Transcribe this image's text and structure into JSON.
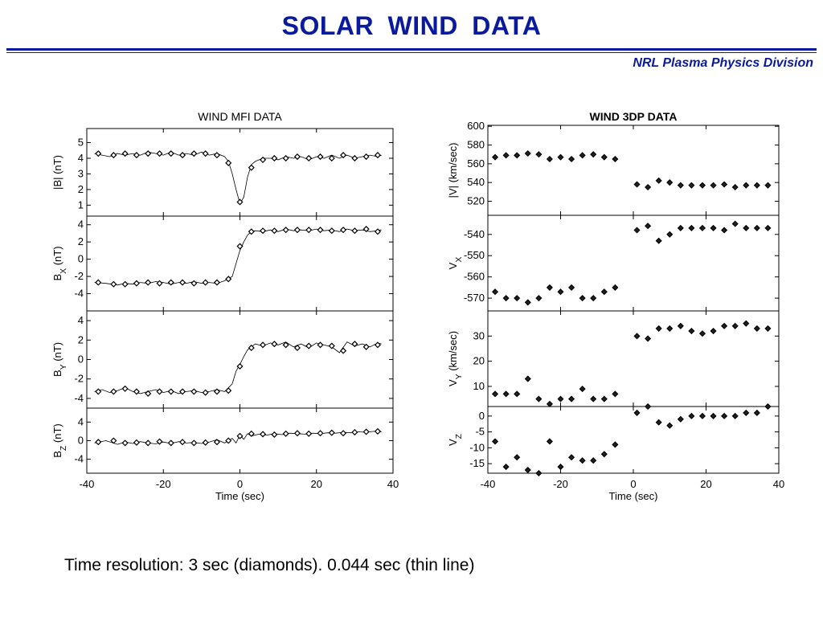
{
  "slide": {
    "title": "SOLAR  WIND  DATA",
    "subtitle": "NRL Plasma Physics Division",
    "caption": "Time resolution: 3 sec (diamonds).  0.044 sec (thin line)",
    "title_color": "#0a1a9c"
  },
  "chart_data": [
    {
      "type": "line",
      "title": "WIND MFI DATA",
      "xlabel": "Time (sec)",
      "xlim": [
        -40,
        40
      ],
      "xticks": [
        -40,
        -20,
        0,
        20,
        40
      ],
      "panels": [
        {
          "ylabel": "|B| (nT)",
          "ylim": [
            0.3,
            5.9
          ],
          "yticks": [
            1,
            2,
            3,
            4,
            5
          ],
          "diamonds": {
            "x": [
              -37,
              -33,
              -30,
              -27,
              -24,
              -21,
              -18,
              -15,
              -12,
              -9,
              -6,
              -3,
              0,
              3,
              6,
              9,
              12,
              15,
              18,
              21,
              24,
              27,
              30,
              33,
              36
            ],
            "y": [
              4.3,
              4.2,
              4.3,
              4.2,
              4.3,
              4.3,
              4.3,
              4.2,
              4.3,
              4.3,
              4.2,
              3.7,
              1.2,
              3.4,
              3.9,
              4.0,
              4.0,
              4.1,
              4.0,
              4.1,
              4.0,
              4.2,
              4.0,
              4.1,
              4.2
            ]
          },
          "line": {
            "x": [
              -38,
              -36,
              -34,
              -32,
              -30,
              -28,
              -26,
              -24,
              -22,
              -20,
              -18,
              -16,
              -14,
              -12,
              -10,
              -8,
              -6,
              -4,
              -3,
              -2,
              -1,
              0,
              1,
              2,
              3,
              4,
              6,
              8,
              10,
              12,
              14,
              16,
              18,
              20,
              22,
              24,
              26,
              28,
              30,
              32,
              34,
              36,
              37
            ],
            "y": [
              4.3,
              4.2,
              4.1,
              4.3,
              4.2,
              4.3,
              4.2,
              4.4,
              4.3,
              4.2,
              4.4,
              4.2,
              4.3,
              4.2,
              4.4,
              4.2,
              4.3,
              4.1,
              3.8,
              3.0,
              2.0,
              1.1,
              1.5,
              2.8,
              3.6,
              3.8,
              4.0,
              4.0,
              3.9,
              4.1,
              4.0,
              4.1,
              3.9,
              4.1,
              4.0,
              4.2,
              4.0,
              4.2,
              4.0,
              4.1,
              4.2,
              4.1,
              4.2
            ]
          }
        },
        {
          "ylabel": "B_X (nT)",
          "ylim": [
            -6,
            5
          ],
          "yticks": [
            4,
            2,
            0,
            -2,
            -4
          ],
          "diamonds": {
            "x": [
              -37,
              -33,
              -30,
              -27,
              -24,
              -21,
              -18,
              -15,
              -12,
              -9,
              -6,
              -3,
              0,
              3,
              6,
              9,
              12,
              15,
              18,
              21,
              24,
              27,
              30,
              33,
              36
            ],
            "y": [
              -2.7,
              -2.9,
              -2.9,
              -2.8,
              -2.7,
              -2.8,
              -2.7,
              -2.7,
              -2.8,
              -2.7,
              -2.7,
              -2.3,
              1.5,
              3.2,
              3.3,
              3.3,
              3.4,
              3.4,
              3.4,
              3.4,
              3.3,
              3.4,
              3.3,
              3.5,
              3.2
            ]
          },
          "line": {
            "x": [
              -38,
              -35,
              -32,
              -30,
              -28,
              -26,
              -24,
              -22,
              -20,
              -18,
              -16,
              -14,
              -12,
              -10,
              -8,
              -6,
              -4,
              -2,
              -1,
              0,
              1,
              2,
              3,
              4,
              6,
              8,
              10,
              12,
              14,
              16,
              18,
              20,
              22,
              24,
              26,
              28,
              30,
              32,
              34,
              36,
              37
            ],
            "y": [
              -2.7,
              -2.8,
              -3.0,
              -2.8,
              -2.9,
              -2.7,
              -2.8,
              -2.6,
              -2.7,
              -2.9,
              -2.7,
              -2.8,
              -2.6,
              -2.8,
              -2.7,
              -2.8,
              -2.5,
              -2.0,
              -0.5,
              1.0,
              2.0,
              2.8,
              3.2,
              3.3,
              3.2,
              3.4,
              3.2,
              3.5,
              3.3,
              3.4,
              3.3,
              3.5,
              3.3,
              3.4,
              3.2,
              3.5,
              3.3,
              3.4,
              3.2,
              3.3,
              3.4
            ]
          }
        },
        {
          "ylabel": "B_Y (nT)",
          "ylim": [
            -5,
            5
          ],
          "yticks": [
            4,
            2,
            0,
            -2,
            -4
          ],
          "diamonds": {
            "x": [
              -37,
              -33,
              -30,
              -27,
              -24,
              -21,
              -18,
              -15,
              -12,
              -9,
              -6,
              -3,
              0,
              3,
              6,
              9,
              12,
              15,
              18,
              21,
              24,
              27,
              30,
              33,
              36
            ],
            "y": [
              -3.3,
              -3.3,
              -3.0,
              -3.3,
              -3.5,
              -3.3,
              -3.3,
              -3.3,
              -3.3,
              -3.4,
              -3.3,
              -3.2,
              -0.7,
              1.2,
              1.5,
              1.6,
              1.5,
              1.2,
              1.4,
              1.5,
              1.4,
              0.9,
              1.6,
              1.3,
              1.5
            ]
          },
          "line": {
            "x": [
              -38,
              -36,
              -34,
              -32,
              -30,
              -28,
              -26,
              -24,
              -22,
              -20,
              -18,
              -16,
              -14,
              -12,
              -10,
              -8,
              -6,
              -4,
              -2,
              -1,
              0,
              1,
              2,
              3,
              4,
              6,
              8,
              10,
              12,
              14,
              16,
              18,
              20,
              22,
              24,
              26,
              28,
              30,
              32,
              34,
              36,
              37
            ],
            "y": [
              -3.3,
              -3.1,
              -3.4,
              -3.2,
              -2.9,
              -3.3,
              -3.5,
              -3.3,
              -3.1,
              -3.4,
              -3.2,
              -3.5,
              -3.3,
              -3.2,
              -3.4,
              -3.3,
              -3.1,
              -3.3,
              -2.5,
              -1.2,
              -0.5,
              0.3,
              1.0,
              1.3,
              1.6,
              1.4,
              1.7,
              1.5,
              1.8,
              1.3,
              1.6,
              1.2,
              1.7,
              1.5,
              1.3,
              0.7,
              1.8,
              1.4,
              1.6,
              1.3,
              1.7,
              1.6
            ]
          }
        },
        {
          "ylabel": "B_Z (nT)",
          "ylim": [
            -7,
            7
          ],
          "yticks": [
            4,
            0,
            -4
          ],
          "diamonds": {
            "x": [
              -37,
              -33,
              -30,
              -27,
              -24,
              -21,
              -18,
              -15,
              -12,
              -9,
              -6,
              -3,
              0,
              3,
              6,
              9,
              12,
              15,
              18,
              21,
              24,
              27,
              30,
              33,
              36
            ],
            "y": [
              -0.3,
              0.0,
              -0.5,
              -0.4,
              -0.5,
              -0.2,
              -0.5,
              -0.3,
              -0.5,
              -0.4,
              -0.3,
              0.0,
              1.0,
              1.5,
              1.4,
              1.3,
              1.5,
              1.6,
              1.5,
              1.6,
              1.7,
              1.6,
              1.8,
              1.9,
              2.0
            ]
          },
          "line": {
            "x": [
              -38,
              -35,
              -32,
              -30,
              -28,
              -26,
              -24,
              -22,
              -20,
              -18,
              -16,
              -14,
              -12,
              -10,
              -8,
              -6,
              -4,
              -2,
              -1,
              0,
              1,
              2,
              3,
              5,
              7,
              9,
              11,
              13,
              15,
              17,
              19,
              21,
              23,
              25,
              27,
              29,
              31,
              33,
              35,
              37
            ],
            "y": [
              -0.5,
              0.0,
              -0.8,
              -0.3,
              -0.6,
              -0.2,
              -0.5,
              -0.7,
              -0.3,
              -0.6,
              -0.2,
              -0.5,
              -0.4,
              -0.6,
              -0.3,
              0.2,
              -0.5,
              0.5,
              -0.5,
              1.2,
              0.3,
              1.5,
              1.0,
              1.4,
              1.2,
              1.5,
              1.3,
              1.6,
              1.5,
              1.4,
              1.6,
              1.5,
              1.7,
              1.6,
              1.8,
              1.7,
              1.9,
              1.8,
              2.0,
              1.9
            ]
          }
        }
      ]
    },
    {
      "type": "scatter",
      "title": "WIND 3DP DATA",
      "xlabel": "Time (sec)",
      "xlim": [
        -40,
        40
      ],
      "xticks": [
        -40,
        -20,
        0,
        20,
        40
      ],
      "x": [
        -38,
        -35,
        -32,
        -29,
        -26,
        -23,
        -20,
        -17,
        -14,
        -11,
        -8,
        -5,
        -2,
        1,
        4,
        7,
        10,
        13,
        16,
        19,
        22,
        25,
        28,
        31,
        34,
        37
      ],
      "panels": [
        {
          "ylabel": "|V| (km/sec)",
          "ylim": [
            505,
            601
          ],
          "yticks": [
            600,
            580,
            560,
            540,
            520
          ],
          "values": [
            567,
            569,
            569,
            571,
            570,
            565,
            567,
            565,
            569,
            570,
            567,
            565,
            null,
            538,
            535,
            542,
            540,
            537,
            537,
            537,
            537,
            538,
            535,
            537,
            537,
            537
          ]
        },
        {
          "ylabel": "V_X",
          "ylim": [
            -576,
            -531
          ],
          "yticks": [
            -540,
            -550,
            -560,
            -570
          ],
          "values": [
            -567,
            -570,
            -570,
            -572,
            -570,
            -565,
            -567,
            -565,
            -570,
            -570,
            -567,
            -565,
            null,
            -538,
            -536,
            -543,
            -540,
            -537,
            -537,
            -537,
            -537,
            -538,
            -535,
            -537,
            -537,
            -537
          ]
        },
        {
          "ylabel": "V_Y (km/sec)",
          "ylim": [
            2,
            40
          ],
          "yticks": [
            30,
            20,
            10
          ],
          "values": [
            7,
            7,
            7,
            13,
            5,
            3,
            5,
            5,
            9,
            5,
            5,
            7,
            null,
            30,
            29,
            33,
            33,
            34,
            32,
            31,
            32,
            34,
            34,
            35,
            33,
            33
          ]
        },
        {
          "ylabel": "V_Z",
          "ylim": [
            -18,
            3
          ],
          "yticks": [
            0,
            -5,
            -10,
            -15
          ],
          "values": [
            -8,
            -16,
            -13,
            -17,
            -18,
            -8,
            -16,
            -13,
            -14,
            -14,
            -12,
            -9,
            null,
            1,
            3,
            -2,
            -3,
            -1,
            0,
            0,
            0,
            0,
            0,
            1,
            1,
            3
          ]
        }
      ]
    }
  ]
}
